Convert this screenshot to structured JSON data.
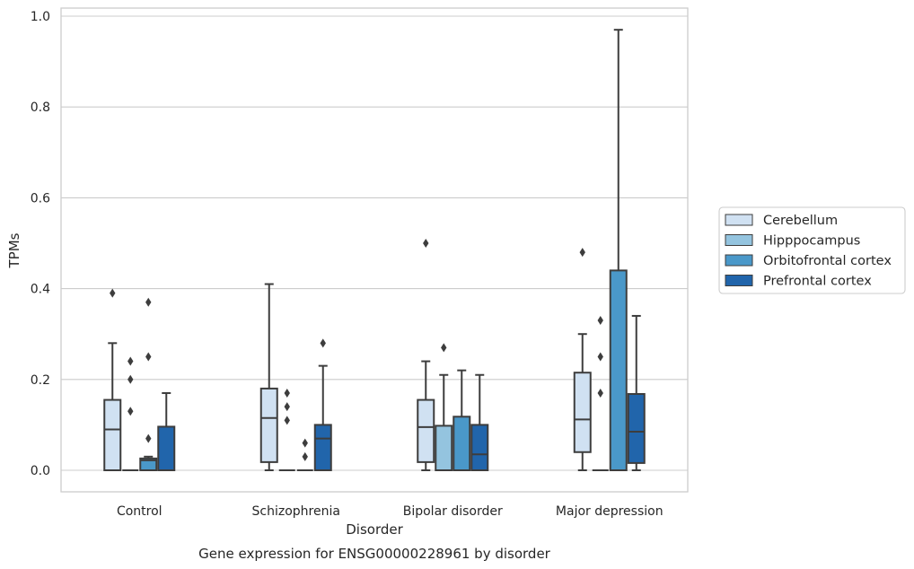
{
  "chart_data": {
    "type": "box",
    "title": "",
    "caption": "Gene expression for ENSG00000228961 by disorder",
    "xlabel": "Disorder",
    "ylabel": "TPMs",
    "ylim": [
      -0.048,
      1.02
    ],
    "yticks": [
      0.0,
      0.2,
      0.4,
      0.6,
      0.8,
      1.0
    ],
    "ytick_labels": [
      "0.0",
      "0.2",
      "0.4",
      "0.6",
      "0.8",
      "1.0"
    ],
    "grid": "horizontal",
    "legend_position": "right",
    "categories": [
      "Control",
      "Schizophrenia",
      "Bipolar disorder",
      "Major depression"
    ],
    "series": [
      {
        "name": "Cerebellum",
        "color": "#d0e1f2",
        "boxes": [
          {
            "whislo": 0.0,
            "q1": 0.0,
            "med": 0.09,
            "q3": 0.155,
            "whishi": 0.28,
            "fliers": [
              0.39
            ]
          },
          {
            "whislo": 0.0,
            "q1": 0.018,
            "med": 0.115,
            "q3": 0.18,
            "whishi": 0.41,
            "fliers": []
          },
          {
            "whislo": 0.0,
            "q1": 0.018,
            "med": 0.095,
            "q3": 0.155,
            "whishi": 0.24,
            "fliers": [
              0.5
            ]
          },
          {
            "whislo": 0.0,
            "q1": 0.04,
            "med": 0.112,
            "q3": 0.215,
            "whishi": 0.3,
            "fliers": [
              0.48
            ]
          }
        ]
      },
      {
        "name": "Hipppocampus",
        "color": "#94c4df",
        "boxes": [
          {
            "whislo": 0.0,
            "q1": 0.0,
            "med": 0.0,
            "q3": 0.0,
            "whishi": 0.0,
            "fliers": [
              0.13,
              0.2,
              0.24
            ]
          },
          {
            "whislo": 0.0,
            "q1": 0.0,
            "med": 0.0,
            "q3": 0.0,
            "whishi": 0.0,
            "fliers": [
              0.11,
              0.14,
              0.17
            ]
          },
          {
            "whislo": 0.0,
            "q1": 0.0,
            "med": 0.0,
            "q3": 0.098,
            "whishi": 0.21,
            "fliers": [
              0.27
            ]
          },
          {
            "whislo": 0.0,
            "q1": 0.0,
            "med": 0.0,
            "q3": 0.0,
            "whishi": 0.0,
            "fliers": [
              0.17,
              0.25,
              0.33
            ]
          }
        ]
      },
      {
        "name": "Orbitofrontal cortex",
        "color": "#4a98c9",
        "boxes": [
          {
            "whislo": 0.0,
            "q1": 0.0,
            "med": 0.022,
            "q3": 0.026,
            "whishi": 0.03,
            "fliers": [
              0.07,
              0.25,
              0.37
            ]
          },
          {
            "whislo": 0.0,
            "q1": 0.0,
            "med": 0.0,
            "q3": 0.0,
            "whishi": 0.0,
            "fliers": [
              0.03,
              0.06
            ]
          },
          {
            "whislo": 0.0,
            "q1": 0.0,
            "med": 0.0,
            "q3": 0.118,
            "whishi": 0.22,
            "fliers": []
          },
          {
            "whislo": 0.0,
            "q1": 0.0,
            "med": 0.0,
            "q3": 0.44,
            "whishi": 0.97,
            "fliers": []
          }
        ]
      },
      {
        "name": "Prefrontal cortex",
        "color": "#2165ab",
        "boxes": [
          {
            "whislo": 0.0,
            "q1": 0.0,
            "med": 0.0,
            "q3": 0.096,
            "whishi": 0.17,
            "fliers": []
          },
          {
            "whislo": 0.0,
            "q1": 0.0,
            "med": 0.07,
            "q3": 0.1,
            "whishi": 0.23,
            "fliers": [
              0.28
            ]
          },
          {
            "whislo": 0.0,
            "q1": 0.0,
            "med": 0.035,
            "q3": 0.1,
            "whishi": 0.21,
            "fliers": []
          },
          {
            "whislo": 0.0,
            "q1": 0.016,
            "med": 0.085,
            "q3": 0.168,
            "whishi": 0.34,
            "fliers": []
          }
        ]
      }
    ]
  }
}
